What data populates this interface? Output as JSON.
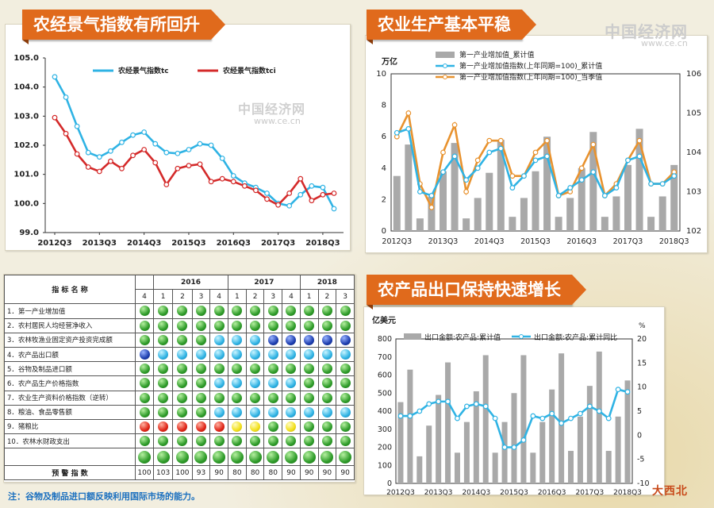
{
  "watermark": {
    "top_right": "中国经济网",
    "top_right_url": "www.ce.cn",
    "mid": "中国经济网",
    "mid_url": "www.ce.cn",
    "corner": "大西北"
  },
  "colors": {
    "orange": "#e06a1c",
    "cyan": "#2fb3e4",
    "red": "#d42a2a",
    "gray": "#a9a9a9",
    "line_orange": "#e8922e"
  },
  "panel1": {
    "title": "农经景气指数有所回升",
    "chart_data": {
      "type": "line",
      "x_ticks": [
        "2012Q3",
        "2013Q3",
        "2014Q3",
        "2015Q3",
        "2016Q3",
        "2017Q3",
        "2018Q3"
      ],
      "ylim": [
        99.0,
        105.0
      ],
      "y_ticks": [
        "99.0",
        "100.0",
        "101.0",
        "102.0",
        "103.0",
        "104.0",
        "105.0"
      ],
      "series": [
        {
          "name": "农经景气指数tc",
          "color": "#2fb3e4",
          "values": [
            104.35,
            103.65,
            102.65,
            101.75,
            101.6,
            101.8,
            102.1,
            102.35,
            102.45,
            102.05,
            101.75,
            101.72,
            101.85,
            102.05,
            102.0,
            101.55,
            100.95,
            100.7,
            100.55,
            100.35,
            100.0,
            99.92,
            100.3,
            100.6,
            100.55,
            99.82
          ]
        },
        {
          "name": "农经景气指数tci",
          "color": "#d42a2a",
          "values": [
            102.95,
            102.4,
            101.7,
            101.25,
            101.1,
            101.45,
            101.2,
            101.65,
            101.85,
            101.4,
            100.65,
            101.2,
            101.3,
            101.35,
            100.75,
            100.85,
            100.75,
            100.6,
            100.45,
            100.15,
            99.95,
            100.35,
            100.85,
            100.1,
            100.3,
            100.35
          ]
        }
      ]
    }
  },
  "panel2": {
    "title": "农业生产基本平稳",
    "chart_data": {
      "type": "bar",
      "x_ticks": [
        "2012Q3",
        "2013Q3",
        "2014Q3",
        "2015Q3",
        "2016Q3",
        "2017Q3",
        "2018Q3"
      ],
      "ylabel_left": "万亿",
      "ylim_left": [
        0,
        10
      ],
      "y_ticks_left": [
        "0",
        "2",
        "4",
        "6",
        "8",
        "10"
      ],
      "ylim_right": [
        102,
        106
      ],
      "y_ticks_right": [
        "102",
        "103",
        "104",
        "105",
        "106"
      ],
      "series": [
        {
          "name": "第一产业增加值_累计值",
          "kind": "bar",
          "axis": "left",
          "color": "#a9a9a9",
          "values": [
            3.5,
            5.5,
            0.8,
            2.2,
            3.8,
            5.6,
            0.8,
            2.1,
            3.7,
            5.8,
            0.9,
            2.1,
            3.8,
            6.0,
            0.9,
            2.1,
            4.0,
            6.3,
            0.9,
            2.2,
            4.2,
            6.5,
            0.9,
            2.2,
            4.2
          ]
        },
        {
          "name": "第一产业增加值指数(上年同期=100)_累计值",
          "kind": "line",
          "axis": "right",
          "color": "#2fb3e4",
          "values": [
            104.5,
            104.6,
            103.0,
            102.9,
            103.5,
            103.9,
            103.3,
            103.6,
            104.0,
            104.1,
            103.1,
            103.4,
            103.8,
            103.9,
            102.9,
            103.1,
            103.3,
            103.5,
            102.9,
            103.1,
            103.8,
            103.9,
            103.2,
            103.2,
            103.4
          ]
        },
        {
          "name": "第一产业增加值指数(上年同期=100)_当季值",
          "kind": "line",
          "axis": "right",
          "color": "#e8922e",
          "values": [
            104.4,
            105.0,
            103.2,
            102.6,
            104.0,
            104.7,
            103.0,
            103.8,
            104.3,
            104.3,
            103.4,
            103.4,
            104.0,
            104.3,
            102.9,
            103.0,
            103.6,
            104.2,
            102.9,
            103.2,
            103.8,
            104.3,
            103.2,
            103.2,
            103.5
          ]
        }
      ]
    }
  },
  "table": {
    "header_label": "指 标 名 称",
    "years": [
      "2016",
      "2017",
      "2018"
    ],
    "quarters": [
      "4",
      "1",
      "2",
      "3",
      "4",
      "1",
      "2",
      "3",
      "4",
      "1",
      "2",
      "3"
    ],
    "rows": [
      {
        "label": "1．第一产业增加值",
        "dots": [
          "green",
          "green",
          "green",
          "green",
          "green",
          "green",
          "green",
          "green",
          "green",
          "green",
          "green",
          "green"
        ]
      },
      {
        "label": "2．农村居民人均经营净收入",
        "dots": [
          "green",
          "green",
          "green",
          "green",
          "green",
          "green",
          "green",
          "green",
          "green",
          "green",
          "green",
          "green"
        ]
      },
      {
        "label": "3．农林牧渔业固定资产投资完成额",
        "dots": [
          "green",
          "green",
          "green",
          "green",
          "blue",
          "blue",
          "blue",
          "navy",
          "navy",
          "navy",
          "navy",
          "navy"
        ]
      },
      {
        "label": "4．农产品出口额",
        "dots": [
          "navy",
          "blue",
          "blue",
          "blue",
          "blue",
          "blue",
          "blue",
          "blue",
          "blue",
          "blue",
          "blue",
          "blue"
        ]
      },
      {
        "label": "5．谷物及制品进口额",
        "dots": [
          "green",
          "green",
          "green",
          "green",
          "green",
          "green",
          "green",
          "green",
          "green",
          "green",
          "green",
          "green"
        ]
      },
      {
        "label": "6．农产品生产价格指数",
        "dots": [
          "green",
          "green",
          "green",
          "green",
          "blue",
          "blue",
          "blue",
          "blue",
          "blue",
          "green",
          "green",
          "green"
        ]
      },
      {
        "label": "7．农业生产资料价格指数（逆转）",
        "dots": [
          "green",
          "green",
          "green",
          "green",
          "green",
          "green",
          "green",
          "green",
          "green",
          "green",
          "green",
          "green"
        ]
      },
      {
        "label": "8．粮油、食品零售额",
        "dots": [
          "green",
          "green",
          "green",
          "green",
          "blue",
          "blue",
          "blue",
          "blue",
          "blue",
          "blue",
          "blue",
          "blue"
        ]
      },
      {
        "label": "9．猪粮比",
        "dots": [
          "red",
          "red",
          "red",
          "red",
          "red",
          "yellow",
          "yellow",
          "green",
          "yellow",
          "green",
          "green",
          "green"
        ]
      },
      {
        "label": "10．农林水财政支出",
        "dots": [
          "green",
          "green",
          "green",
          "green",
          "green",
          "green",
          "green",
          "green",
          "green",
          "green",
          "green",
          "green"
        ]
      }
    ],
    "summary_dots": [
      "green",
      "green",
      "green",
      "green",
      "green",
      "green",
      "green",
      "green",
      "green",
      "green",
      "green",
      "green"
    ],
    "warning_label": "预 警 指 数",
    "warning_values": [
      "100",
      "103",
      "100",
      "93",
      "90",
      "80",
      "80",
      "80",
      "90",
      "90",
      "90",
      "90"
    ],
    "note": "注：谷物及制品进口额反映利用国际市场的能力。"
  },
  "panel3": {
    "title": "农产品出口保持快速增长",
    "chart_data": {
      "type": "bar",
      "x_ticks": [
        "2012Q3",
        "2013Q3",
        "2014Q3",
        "2015Q3",
        "2016Q3",
        "2017Q3",
        "2018Q3"
      ],
      "ylabel_left": "亿美元",
      "ylabel_right": "%",
      "ylim_left": [
        0,
        800
      ],
      "y_ticks_left": [
        "0",
        "100",
        "200",
        "300",
        "400",
        "500",
        "600",
        "700",
        "800"
      ],
      "ylim_right": [
        -10,
        20
      ],
      "y_ticks_right": [
        "-10",
        "-5",
        "0",
        "5",
        "10",
        "15",
        "20"
      ],
      "series": [
        {
          "name": "出口金额:农产品:累计值",
          "kind": "bar",
          "axis": "left",
          "color": "#a9a9a9",
          "values": [
            450,
            630,
            150,
            320,
            490,
            670,
            170,
            340,
            510,
            710,
            170,
            340,
            500,
            710,
            170,
            340,
            520,
            720,
            180,
            370,
            540,
            730,
            180,
            370,
            570
          ]
        },
        {
          "name": "出口金额:农产品:累计同比",
          "kind": "line",
          "axis": "right",
          "color": "#2fb3e4",
          "values": [
            4.0,
            4.0,
            5.0,
            6.5,
            7.0,
            7.0,
            3.5,
            6.0,
            6.5,
            6.0,
            3.5,
            -2.5,
            -2.5,
            -1.0,
            4.0,
            3.5,
            4.5,
            2.5,
            3.5,
            4.5,
            6.0,
            5.0,
            3.5,
            9.5,
            9.0
          ]
        }
      ]
    }
  }
}
